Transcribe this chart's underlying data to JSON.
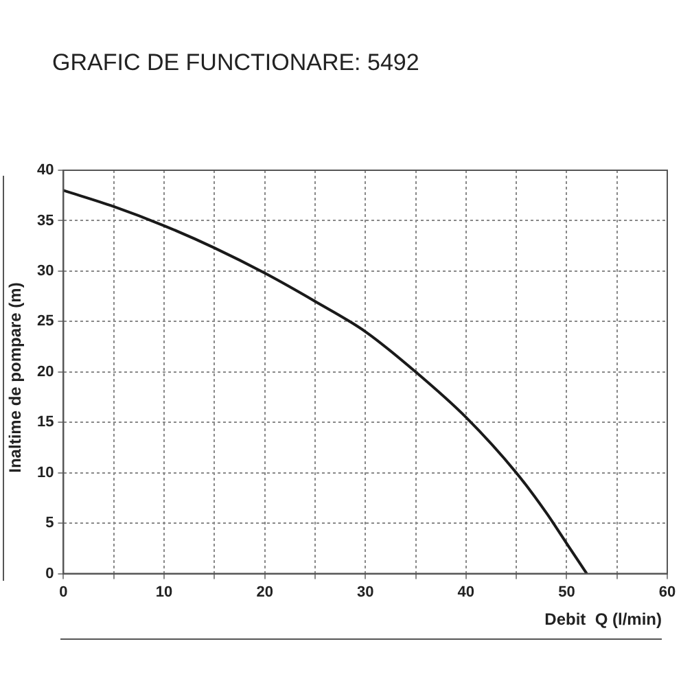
{
  "chart_data": {
    "type": "line",
    "title": "GRAFIC DE FUNCTIONARE: 5492",
    "xlabel": "Debit  Q (l/min)",
    "ylabel": "Inaltime de pompare (m)",
    "x": [
      0,
      5,
      10,
      15,
      20,
      25,
      30,
      35,
      40,
      45,
      48,
      50,
      52
    ],
    "series": [
      {
        "color": "#1a1a1a",
        "values": [
          38,
          36.4,
          34.5,
          32.3,
          29.8,
          27,
          24,
          20,
          15.5,
          10,
          6,
          3,
          0
        ]
      }
    ],
    "xlim": [
      0,
      60
    ],
    "xticks": [
      0,
      {
        "value": 5,
        "label": null
      },
      10,
      {
        "value": 15,
        "label": null
      },
      20,
      {
        "value": 25,
        "label": null
      },
      30,
      {
        "value": 35,
        "label": null
      },
      40,
      {
        "value": 45,
        "label": null
      },
      50,
      {
        "value": 55,
        "label": null
      },
      60
    ],
    "ylim": [
      0,
      40
    ],
    "yticks": [
      0,
      5,
      10,
      15,
      20,
      25,
      30,
      35,
      40
    ],
    "grid": true,
    "legend": false,
    "marker": "none",
    "line_style": "solid"
  }
}
